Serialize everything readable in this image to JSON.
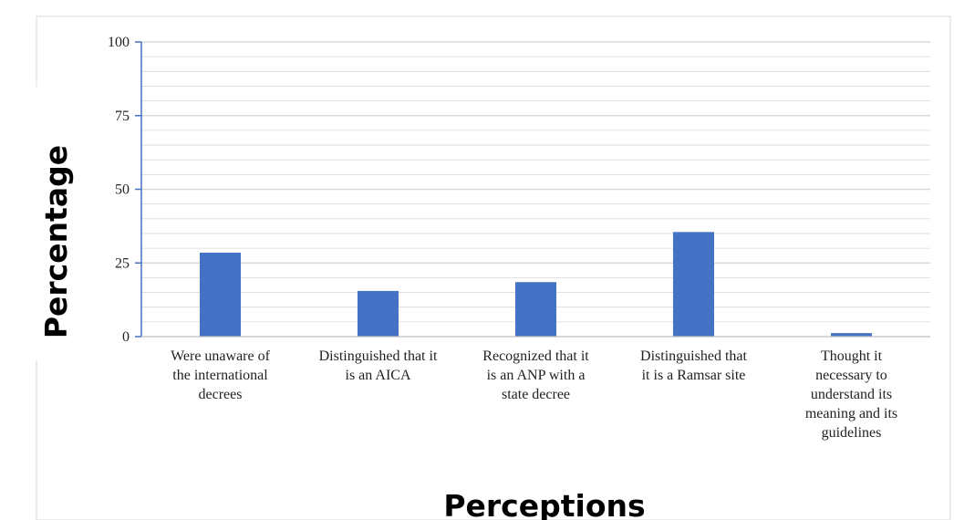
{
  "chart_data": {
    "type": "bar",
    "categories": [
      [
        "Were unaware of",
        "the international",
        "decrees"
      ],
      [
        "Distinguished that it",
        "is an AICA"
      ],
      [
        "Recognized that it",
        "is an ANP with a",
        "state decree"
      ],
      [
        "Distinguished that",
        "it is a Ramsar site"
      ],
      [
        "Thought it",
        "necessary to",
        "understand its",
        "meaning and its",
        "guidelines"
      ]
    ],
    "values": [
      28.5,
      15.5,
      18.5,
      35.5,
      1.2
    ],
    "xlabel": "Perceptions",
    "ylabel": "Percentage",
    "ylim": [
      0,
      100
    ],
    "yticks": [
      "0",
      "25",
      "50",
      "75",
      "100"
    ],
    "ytick_values": [
      0,
      25,
      50,
      75,
      100
    ],
    "minor_grid_step": 5,
    "grid": true,
    "legend": "none",
    "bar_color": "#4472c4",
    "axis_color": "#4472c4",
    "grid_color": "#d9d9d9"
  }
}
